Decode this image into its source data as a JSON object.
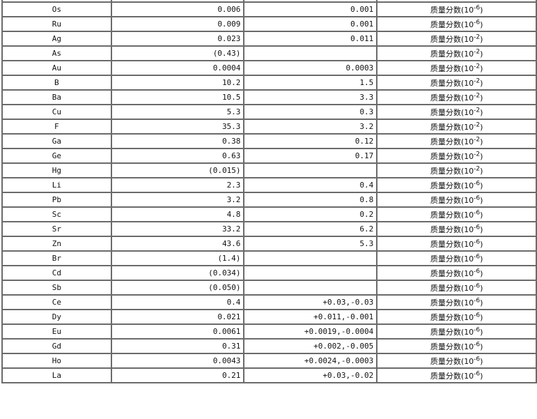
{
  "table": {
    "unit_label": "质量分数",
    "rows": [
      {
        "element": "Os",
        "value": "0.006",
        "uncertainty": "0.001",
        "exponent": "-6"
      },
      {
        "element": "Ru",
        "value": "0.009",
        "uncertainty": "0.001",
        "exponent": "-6"
      },
      {
        "element": "Ag",
        "value": "0.023",
        "uncertainty": "0.011",
        "exponent": "-2"
      },
      {
        "element": "As",
        "value": "(0.43)",
        "uncertainty": "",
        "exponent": "-2"
      },
      {
        "element": "Au",
        "value": "0.0004",
        "uncertainty": "0.0003",
        "exponent": "-2"
      },
      {
        "element": "B",
        "value": "10.2",
        "uncertainty": "1.5",
        "exponent": "-2"
      },
      {
        "element": "Ba",
        "value": "10.5",
        "uncertainty": "3.3",
        "exponent": "-2"
      },
      {
        "element": "Cu",
        "value": "5.3",
        "uncertainty": "0.3",
        "exponent": "-2"
      },
      {
        "element": "F",
        "value": "35.3",
        "uncertainty": "3.2",
        "exponent": "-2"
      },
      {
        "element": "Ga",
        "value": "0.38",
        "uncertainty": "0.12",
        "exponent": "-2"
      },
      {
        "element": "Ge",
        "value": "0.63",
        "uncertainty": "0.17",
        "exponent": "-2"
      },
      {
        "element": "Hg",
        "value": "(0.015)",
        "uncertainty": "",
        "exponent": "-2"
      },
      {
        "element": "Li",
        "value": "2.3",
        "uncertainty": "0.4",
        "exponent": "-6"
      },
      {
        "element": "Pb",
        "value": "3.2",
        "uncertainty": "0.8",
        "exponent": "-6"
      },
      {
        "element": "Sc",
        "value": "4.8",
        "uncertainty": "0.2",
        "exponent": "-6"
      },
      {
        "element": "Sr",
        "value": "33.2",
        "uncertainty": "6.2",
        "exponent": "-6"
      },
      {
        "element": "Zn",
        "value": "43.6",
        "uncertainty": "5.3",
        "exponent": "-6"
      },
      {
        "element": "Br",
        "value": "(1.4)",
        "uncertainty": "",
        "exponent": "-6"
      },
      {
        "element": "Cd",
        "value": "(0.034)",
        "uncertainty": "",
        "exponent": "-6"
      },
      {
        "element": "Sb",
        "value": "(0.050)",
        "uncertainty": "",
        "exponent": "-6"
      },
      {
        "element": "Ce",
        "value": "0.4",
        "uncertainty": "+0.03,-0.03",
        "exponent": "-6"
      },
      {
        "element": "Dy",
        "value": "0.021",
        "uncertainty": "+0.011,-0.001",
        "exponent": "-6"
      },
      {
        "element": "Eu",
        "value": "0.0061",
        "uncertainty": "+0.0019,-0.0004",
        "exponent": "-6"
      },
      {
        "element": "Gd",
        "value": "0.31",
        "uncertainty": "+0.002,-0.005",
        "exponent": "-6"
      },
      {
        "element": "Ho",
        "value": "0.0043",
        "uncertainty": "+0.0024,-0.0003",
        "exponent": "-6"
      },
      {
        "element": "La",
        "value": "0.21",
        "uncertainty": "+0.03,-0.02",
        "exponent": "-6"
      }
    ]
  }
}
